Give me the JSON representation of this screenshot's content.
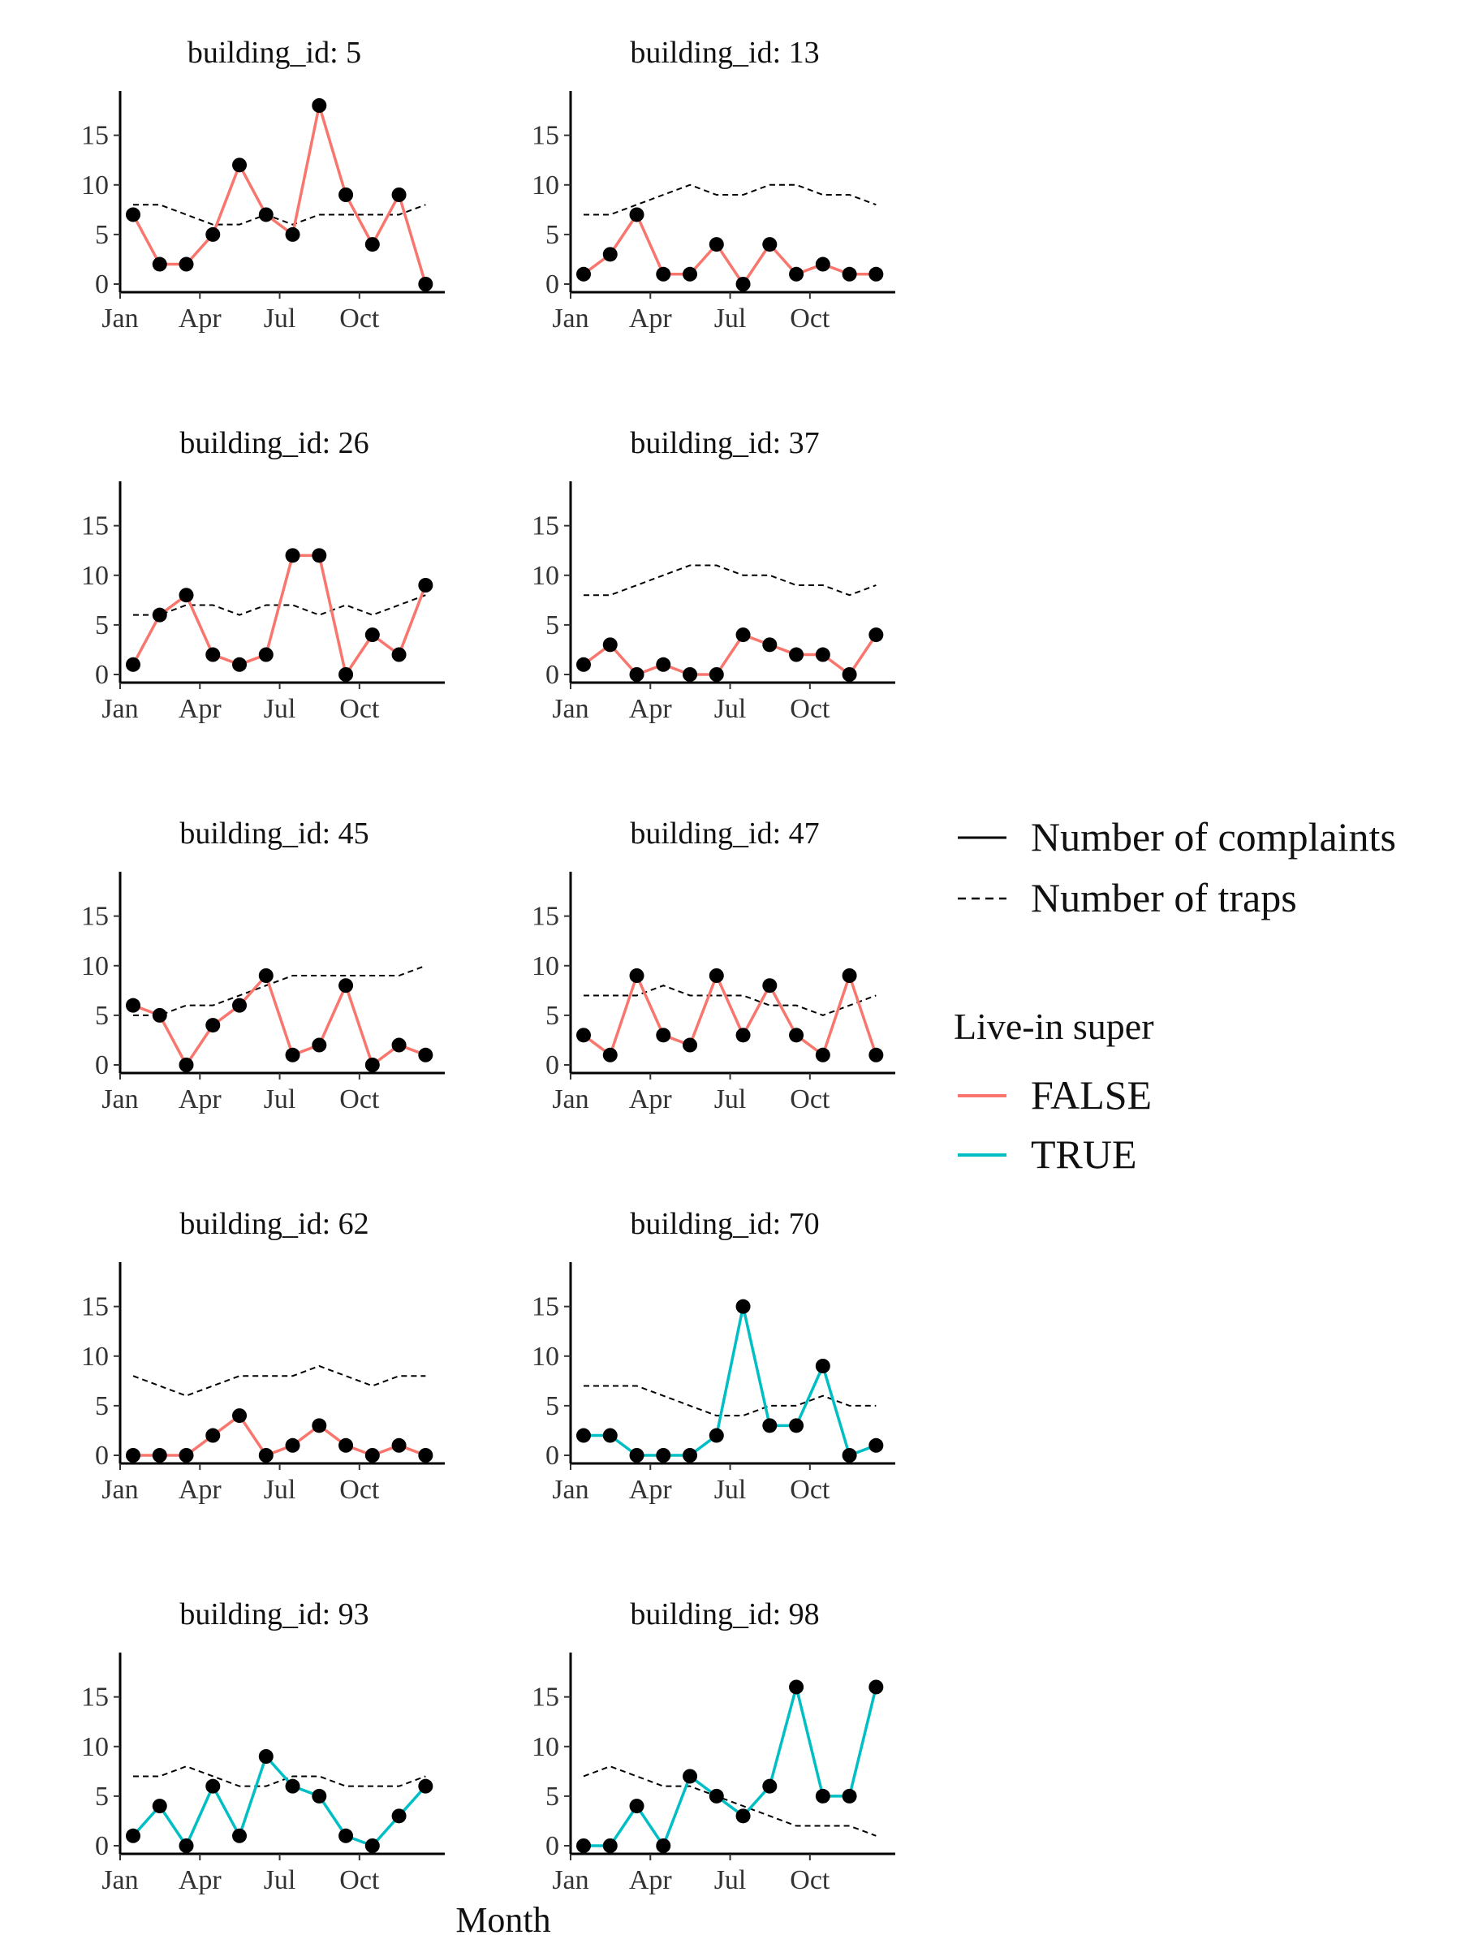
{
  "chart_data": {
    "type": "line",
    "xlabel": "Month",
    "ylabel": "",
    "x_months": [
      1,
      2,
      3,
      4,
      5,
      6,
      7,
      8,
      9,
      10,
      11,
      12
    ],
    "x_tick_labels": [
      "Jan",
      "Apr",
      "Jul",
      "Oct"
    ],
    "x_tick_months": [
      1,
      4,
      7,
      10
    ],
    "ylim": [
      0,
      18
    ],
    "y_ticks": [
      0,
      5,
      10,
      15
    ],
    "grid": false,
    "legend": {
      "placement": "right",
      "linetype_entries": [
        "Number of complaints",
        "Number of traps"
      ],
      "color_title": "Live-in super",
      "color_entries": [
        "FALSE",
        "TRUE"
      ],
      "colors": {
        "FALSE": "#F8766D",
        "TRUE": "#00BFC4"
      }
    },
    "facets": [
      {
        "strip": "building_id: 5",
        "live_in_super": "FALSE",
        "complaints": [
          7,
          2,
          2,
          5,
          12,
          7,
          5,
          18,
          9,
          4,
          9,
          0
        ],
        "traps": [
          8,
          8,
          7,
          6,
          6,
          7,
          6,
          7,
          7,
          7,
          7,
          8
        ]
      },
      {
        "strip": "building_id: 13",
        "live_in_super": "FALSE",
        "complaints": [
          1,
          3,
          7,
          1,
          1,
          4,
          0,
          4,
          1,
          2,
          1,
          1
        ],
        "traps": [
          7,
          7,
          8,
          9,
          10,
          9,
          9,
          10,
          10,
          9,
          9,
          8
        ]
      },
      {
        "strip": "building_id: 26",
        "live_in_super": "FALSE",
        "complaints": [
          1,
          6,
          8,
          2,
          1,
          2,
          12,
          12,
          0,
          4,
          2,
          9
        ],
        "traps": [
          6,
          6,
          7,
          7,
          6,
          7,
          7,
          6,
          7,
          6,
          7,
          8
        ]
      },
      {
        "strip": "building_id: 37",
        "live_in_super": "FALSE",
        "complaints": [
          1,
          3,
          0,
          1,
          0,
          0,
          4,
          3,
          2,
          2,
          0,
          4
        ],
        "traps": [
          8,
          8,
          9,
          10,
          11,
          11,
          10,
          10,
          9,
          9,
          8,
          9
        ]
      },
      {
        "strip": "building_id: 45",
        "live_in_super": "FALSE",
        "complaints": [
          6,
          5,
          0,
          4,
          6,
          9,
          1,
          2,
          8,
          0,
          2,
          1
        ],
        "traps": [
          5,
          5,
          6,
          6,
          7,
          8,
          9,
          9,
          9,
          9,
          9,
          10
        ]
      },
      {
        "strip": "building_id: 47",
        "live_in_super": "FALSE",
        "complaints": [
          3,
          1,
          9,
          3,
          2,
          9,
          3,
          8,
          3,
          1,
          9,
          1
        ],
        "traps": [
          7,
          7,
          7,
          8,
          7,
          7,
          7,
          6,
          6,
          5,
          6,
          7
        ]
      },
      {
        "strip": "building_id: 62",
        "live_in_super": "FALSE",
        "complaints": [
          0,
          0,
          0,
          2,
          4,
          0,
          1,
          3,
          1,
          0,
          1,
          0
        ],
        "traps": [
          8,
          7,
          6,
          7,
          8,
          8,
          8,
          9,
          8,
          7,
          8,
          8
        ]
      },
      {
        "strip": "building_id: 70",
        "live_in_super": "TRUE",
        "complaints": [
          2,
          2,
          0,
          0,
          0,
          2,
          15,
          3,
          3,
          9,
          0,
          1
        ],
        "traps": [
          7,
          7,
          7,
          6,
          5,
          4,
          4,
          5,
          5,
          6,
          5,
          5
        ]
      },
      {
        "strip": "building_id: 93",
        "live_in_super": "TRUE",
        "complaints": [
          1,
          4,
          0,
          6,
          1,
          9,
          6,
          5,
          1,
          0,
          3,
          6
        ],
        "traps": [
          7,
          7,
          8,
          7,
          6,
          6,
          7,
          7,
          6,
          6,
          6,
          7
        ]
      },
      {
        "strip": "building_id: 98",
        "live_in_super": "TRUE",
        "complaints": [
          0,
          0,
          4,
          0,
          7,
          5,
          3,
          6,
          16,
          5,
          5,
          16
        ],
        "traps": [
          7,
          8,
          7,
          6,
          6,
          5,
          4,
          3,
          2,
          2,
          2,
          1
        ]
      }
    ]
  }
}
